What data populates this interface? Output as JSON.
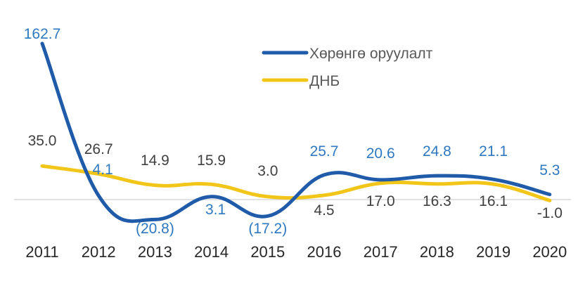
{
  "chart_data": {
    "type": "line",
    "title": "",
    "xlabel": "",
    "ylabel": "",
    "categories": [
      "2011",
      "2012",
      "2013",
      "2014",
      "2015",
      "2016",
      "2017",
      "2018",
      "2019",
      "2020"
    ],
    "ylim": [
      -40,
      170
    ],
    "grid": false,
    "legend_position": "top-right",
    "series": [
      {
        "name": "Хөрөнгө оруулалт",
        "color": "#1f5ba8",
        "label_color": "#2e78c0",
        "values": [
          162.7,
          4.1,
          -20.8,
          3.1,
          -17.2,
          25.7,
          20.6,
          24.8,
          21.1,
          5.3
        ],
        "labels": [
          "162.7",
          "4.1",
          "(20.8)",
          "3.1",
          "(17.2)",
          "25.7",
          "20.6",
          "24.8",
          "21.1",
          "5.3"
        ]
      },
      {
        "name": "ДНБ",
        "color": "#f2c519",
        "label_color": "#404040",
        "values": [
          35.0,
          26.7,
          14.9,
          15.9,
          3.0,
          4.5,
          17.0,
          16.3,
          16.1,
          -1.0
        ],
        "labels": [
          "35.0",
          "26.7",
          "14.9",
          "15.9",
          "3.0",
          "4.5",
          "17.0",
          "16.3",
          "16.1",
          "-1.0"
        ]
      }
    ]
  }
}
